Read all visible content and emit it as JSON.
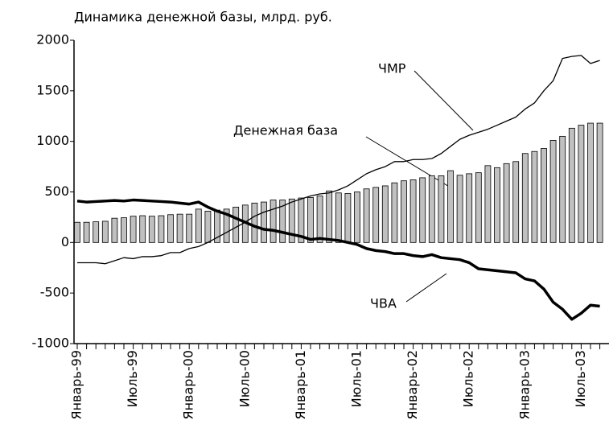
{
  "chart_data": {
    "type": "bar_line",
    "title": "Динамика денежной базы, млрд. руб.",
    "categories": [
      "Январь-99",
      null,
      null,
      null,
      null,
      null,
      "Июль-99",
      null,
      null,
      null,
      null,
      null,
      "Январь-00",
      null,
      null,
      null,
      null,
      null,
      "Июль-00",
      null,
      null,
      null,
      null,
      null,
      "Январь-01",
      null,
      null,
      null,
      null,
      null,
      "Июль-01",
      null,
      null,
      null,
      null,
      null,
      "Январь-02",
      null,
      null,
      null,
      null,
      null,
      "Июль-02",
      null,
      null,
      null,
      null,
      null,
      "Январь-03",
      null,
      null,
      null,
      null,
      null,
      "Июль-03",
      null,
      null
    ],
    "series": [
      {
        "name": "Денежная база",
        "type": "bar",
        "color": "#c0c0c0",
        "values": [
          200,
          200,
          205,
          210,
          240,
          245,
          260,
          265,
          260,
          265,
          275,
          280,
          280,
          330,
          310,
          320,
          330,
          350,
          370,
          390,
          400,
          420,
          420,
          430,
          440,
          445,
          460,
          510,
          490,
          485,
          500,
          530,
          545,
          560,
          590,
          610,
          620,
          640,
          660,
          660,
          710,
          665,
          680,
          690,
          760,
          740,
          780,
          800,
          880,
          900,
          930,
          1010,
          1050,
          1130,
          1160,
          1180,
          1180
        ]
      },
      {
        "name": "ЧМР",
        "type": "line",
        "color": "#000000",
        "values": [
          -200,
          -200,
          -200,
          -210,
          -180,
          -150,
          -160,
          -140,
          -140,
          -130,
          -100,
          -100,
          -60,
          -40,
          0,
          50,
          100,
          150,
          200,
          260,
          300,
          330,
          360,
          400,
          430,
          460,
          480,
          490,
          520,
          560,
          620,
          680,
          720,
          750,
          800,
          800,
          820,
          820,
          830,
          880,
          950,
          1020,
          1060,
          1090,
          1120,
          1160,
          1200,
          1240,
          1320,
          1380,
          1500,
          1600,
          1820,
          1840,
          1850,
          1770,
          1800
        ]
      },
      {
        "name": "ЧВА",
        "type": "line",
        "color": "#000000",
        "values": [
          410,
          400,
          405,
          410,
          415,
          410,
          420,
          415,
          410,
          405,
          400,
          390,
          380,
          400,
          350,
          310,
          280,
          240,
          200,
          160,
          130,
          120,
          100,
          80,
          60,
          30,
          40,
          30,
          20,
          0,
          -20,
          -60,
          -80,
          -90,
          -110,
          -110,
          -130,
          -140,
          -120,
          -150,
          -160,
          -170,
          -200,
          -260,
          -270,
          -280,
          -290,
          -300,
          -360,
          -380,
          -460,
          -590,
          -660,
          -760,
          -700,
          -620,
          -630
        ]
      }
    ],
    "ylim": [
      -1000,
      2000
    ],
    "yticks": [
      -1000,
      -500,
      0,
      500,
      1000,
      1500,
      2000
    ]
  }
}
